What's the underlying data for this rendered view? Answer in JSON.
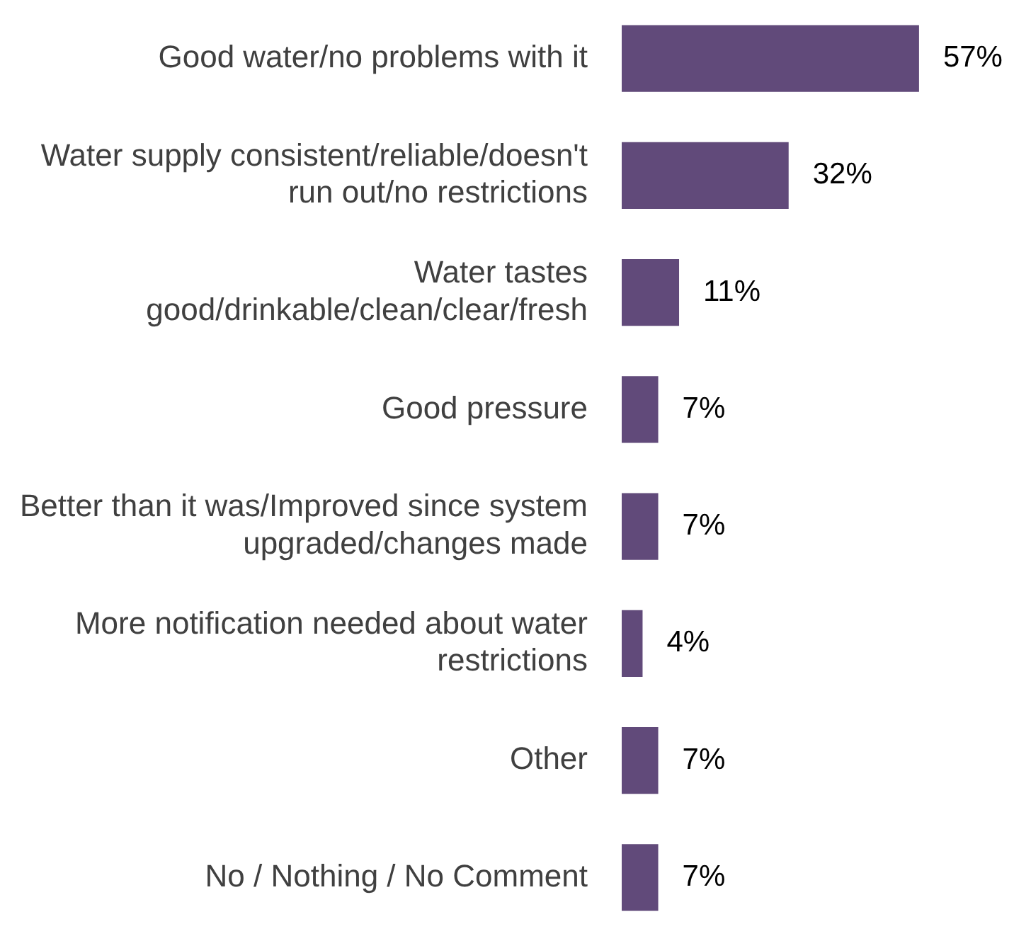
{
  "chart_data": {
    "type": "bar",
    "orientation": "horizontal",
    "categories": [
      "Good water/no problems with it",
      "Water supply consistent/reliable/doesn't run out/no restrictions",
      "Water tastes good/drinkable/clean/clear/fresh",
      "Good pressure",
      "Better than it was/Improved since system upgraded/changes made",
      "More notification needed about water restrictions",
      "Other",
      "No / Nothing / No Comment"
    ],
    "values": [
      57,
      32,
      11,
      7,
      7,
      4,
      7,
      7
    ],
    "value_labels": [
      "57%",
      "32%",
      "11%",
      "7%",
      "7%",
      "4%",
      "7%",
      "7%"
    ],
    "color": "#614a7a"
  }
}
